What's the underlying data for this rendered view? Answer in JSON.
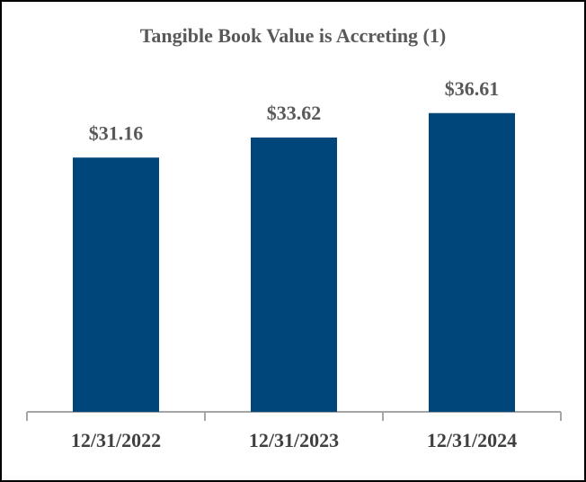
{
  "chart_data": {
    "type": "bar",
    "title": "Tangible Book Value is Accreting (1)",
    "categories": [
      "12/31/2022",
      "12/31/2023",
      "12/31/2024"
    ],
    "values": [
      31.16,
      33.62,
      36.61
    ],
    "value_labels": [
      "$31.16",
      "$33.62",
      "$36.61"
    ],
    "color": "#00467a",
    "ylim": [
      0,
      40
    ]
  }
}
